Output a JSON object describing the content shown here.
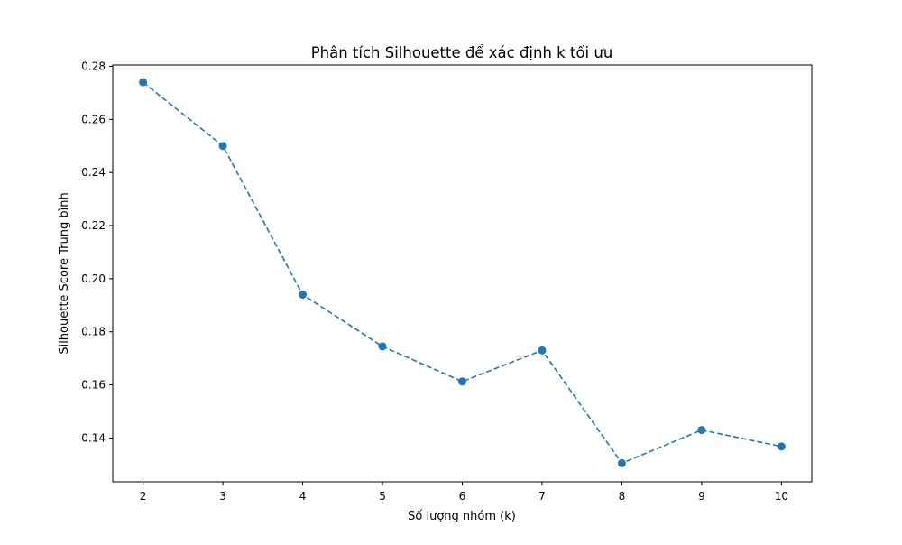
{
  "chart_data": {
    "type": "line",
    "title": "Phân tích Silhouette để xác định k tối ưu",
    "xlabel": "Số lượng nhóm (k)",
    "ylabel": "Silhouette Score Trung bình",
    "x": [
      2,
      3,
      4,
      5,
      6,
      7,
      8,
      9,
      10
    ],
    "series": [
      {
        "values": [
          0.274,
          0.25,
          0.194,
          0.1745,
          0.1613,
          0.173,
          0.1305,
          0.143,
          0.1368
        ]
      }
    ],
    "xlim": [
      1.62,
      10.38
    ],
    "ylim": [
      0.1235,
      0.2805
    ],
    "xticks": [
      2,
      3,
      4,
      5,
      6,
      7,
      8,
      9,
      10
    ],
    "yticks": [
      0.14,
      0.16,
      0.18,
      0.2,
      0.22,
      0.24,
      0.26,
      0.28
    ],
    "ytick_labels": [
      "0.14",
      "0.16",
      "0.18",
      "0.20",
      "0.22",
      "0.24",
      "0.26",
      "0.28"
    ],
    "line_style": "dashed",
    "marker": "circle",
    "grid": false,
    "legend": false,
    "colors": {
      "series": "#1f77b4",
      "axes": "#000000",
      "background": "#ffffff"
    }
  }
}
